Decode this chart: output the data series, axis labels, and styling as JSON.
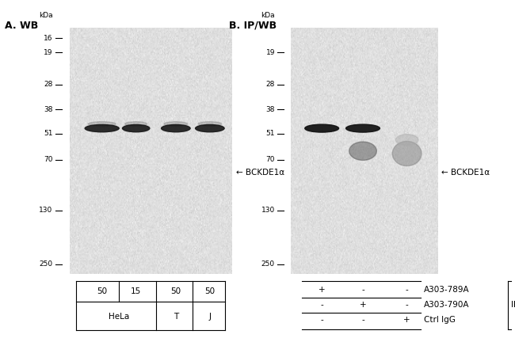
{
  "panel_A_label": "A. WB",
  "panel_B_label": "B. IP/WB",
  "kda_label": "kDa",
  "mw_markers_A": [
    250,
    130,
    70,
    51,
    38,
    28,
    19,
    16
  ],
  "mw_markers_B": [
    250,
    130,
    70,
    51,
    38,
    28,
    19
  ],
  "protein_label": "BCKDE1α",
  "panel_B_table": [
    [
      "+",
      "-",
      "-",
      "A303-789A"
    ],
    [
      "-",
      "+",
      "-",
      "A303-790A"
    ],
    [
      "-",
      "-",
      "+",
      "Ctrl IgG"
    ]
  ],
  "fig_bg": "#ffffff",
  "log_min": 1.146,
  "log_max": 2.447
}
